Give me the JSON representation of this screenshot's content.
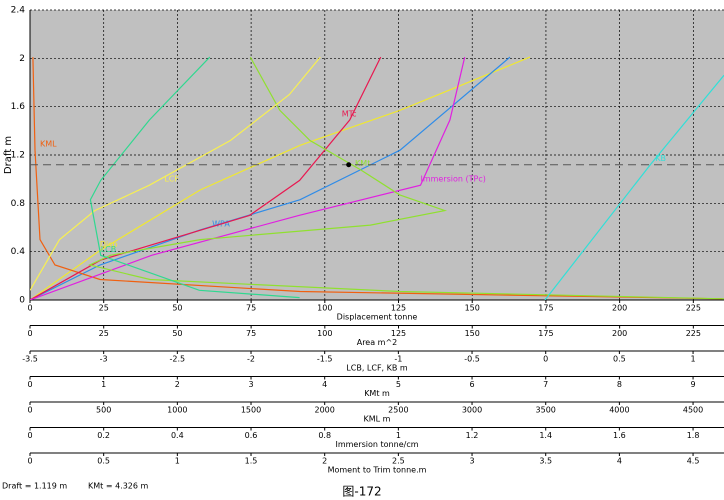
{
  "chart_data": {
    "type": "line",
    "ylabel": "Draft m",
    "ylim": [
      0,
      2.4
    ],
    "yticks": [
      0,
      0.4,
      0.8,
      1.2,
      1.6,
      2,
      2.4
    ],
    "grid": true,
    "axes": [
      {
        "label": "Displacement tonne",
        "xlim": [
          0,
          235.4
        ],
        "xticks": [
          0,
          25,
          50,
          75,
          100,
          125,
          150,
          175,
          200,
          225
        ]
      },
      {
        "label": "Area m^2",
        "xlim": [
          0,
          235.4
        ],
        "xticks": [
          0,
          25,
          50,
          75,
          100,
          125,
          150,
          175,
          200,
          225
        ]
      },
      {
        "label": "LCB, LCF, KB  m",
        "xlim": [
          -3.5,
          1.21
        ],
        "xticks": [
          -3.5,
          -3,
          -2.5,
          -2,
          -1.5,
          -1,
          -0.5,
          0,
          0.5,
          1
        ]
      },
      {
        "label": "KMt  m",
        "xlim": [
          0,
          9.42
        ],
        "xticks": [
          0,
          1,
          2,
          3,
          4,
          5,
          6,
          7,
          8,
          9
        ]
      },
      {
        "label": "KML  m",
        "xlim": [
          0,
          4710
        ],
        "xticks": [
          0,
          500,
          1000,
          1500,
          2000,
          2500,
          3000,
          3500,
          4000,
          4500
        ]
      },
      {
        "label": "Immersion  tonne/cm",
        "xlim": [
          0,
          1.884
        ],
        "xticks": [
          0,
          0.2,
          0.4,
          0.6,
          0.8,
          1,
          1.2,
          1.4,
          1.6,
          1.8
        ]
      },
      {
        "label": "Moment to Trim  tonne.m",
        "xlim": [
          0,
          4.71
        ],
        "xticks": [
          0,
          0.5,
          1,
          1.5,
          2,
          2.5,
          3,
          3.5,
          4,
          4.5
        ]
      }
    ],
    "series": [
      {
        "name": "Disp",
        "color": "#f0e830",
        "axis": 0,
        "x": [
          0,
          23.7,
          57.7,
          91.6,
          125.5,
          169.6
        ],
        "y": [
          0,
          0.41,
          0.91,
          1.28,
          1.57,
          2.01
        ]
      },
      {
        "name": "WPA",
        "color": "#2f8ce8",
        "axis": 1,
        "x": [
          0,
          23.7,
          57.7,
          91.6,
          125.5,
          162.8
        ],
        "y": [
          0,
          0.29,
          0.58,
          0.83,
          1.24,
          2.01
        ]
      },
      {
        "name": "KML",
        "color": "#f06010",
        "axis": 4,
        "x": [
          20,
          34,
          68,
          170,
          475,
          1833,
          4700
        ],
        "y": [
          2.01,
          1.24,
          0.5,
          0.29,
          0.17,
          0.07,
          0.01
        ]
      },
      {
        "name": "MTc",
        "color": "#e81850",
        "axis": 6,
        "x": [
          0,
          0.48,
          1.49,
          1.83,
          2.17,
          2.38
        ],
        "y": [
          0,
          0.33,
          0.7,
          0.99,
          1.49,
          2.01
        ]
      },
      {
        "name": "Immersion (TPc)",
        "color": "#e020e0",
        "axis": 5,
        "x": [
          0,
          0.33,
          0.73,
          1.06,
          1.14,
          1.18
        ],
        "y": [
          0,
          0.37,
          0.7,
          0.95,
          1.49,
          2.01
        ]
      },
      {
        "name": "KMt",
        "color": "#90e030",
        "axis": 3,
        "x": [
          2.99,
          3.39,
          3.8,
          4.48,
          5.02,
          5.63,
          4.62,
          2.31,
          1.09,
          0.81,
          1.63,
          5.02,
          9.42
        ],
        "y": [
          2.01,
          1.57,
          1.32,
          1.08,
          0.87,
          0.74,
          0.62,
          0.5,
          0.37,
          0.29,
          0.17,
          0.07,
          0.01
        ]
      },
      {
        "name": "LCF",
        "color": "#f8f050",
        "axis": 2,
        "x": [
          -1.53,
          -1.74,
          -2.14,
          -2.69,
          -3.06,
          -3.3,
          -3.5
        ],
        "y": [
          2.01,
          1.7,
          1.32,
          0.95,
          0.74,
          0.5,
          0.08
        ]
      },
      {
        "name": "LCB",
        "color": "#30d890",
        "axis": 2,
        "x": [
          -2.28,
          -2.69,
          -3.02,
          -3.09,
          -3.02,
          -2.35,
          -1.67
        ],
        "y": [
          2.01,
          1.49,
          0.99,
          0.83,
          0.37,
          0.08,
          0.02
        ]
      },
      {
        "name": "KB",
        "color": "#30e0d8",
        "axis": 3,
        "x": [
          6.99,
          8.42,
          9.42
        ],
        "y": [
          0,
          1.12,
          1.86
        ]
      }
    ],
    "cursor": {
      "axis": 3,
      "x": 4.326,
      "y": 1.119
    }
  },
  "footer": {
    "draft": "Draft = 1.119 m",
    "kmt": "KMt = 4.326 m",
    "caption": "图-172"
  }
}
